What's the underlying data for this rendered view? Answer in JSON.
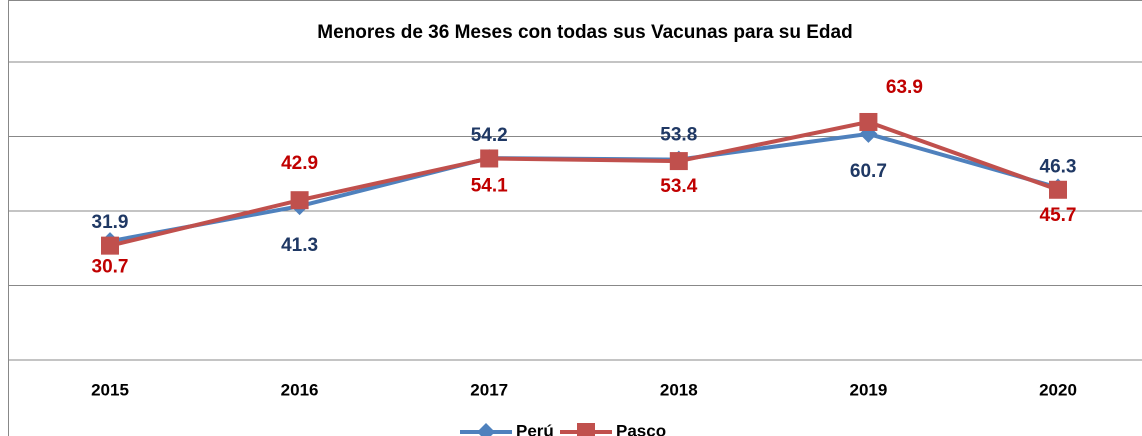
{
  "chart_data": {
    "type": "line",
    "title": "Menores de 36 Meses con todas sus Vacunas para su Edad",
    "categories": [
      "2015",
      "2016",
      "2017",
      "2018",
      "2019",
      "2020"
    ],
    "series": [
      {
        "name": "Perú",
        "color": "#4f81bd",
        "label_color": "#1f3864",
        "values": [
          31.9,
          41.3,
          54.2,
          53.8,
          60.7,
          46.3
        ]
      },
      {
        "name": "Pasco",
        "color": "#c0504d",
        "label_color": "#c00000",
        "values": [
          30.7,
          42.9,
          54.1,
          53.4,
          63.9,
          45.7
        ]
      }
    ],
    "ylim": [
      0,
      80
    ],
    "yticks": [
      0,
      20,
      40,
      60,
      80
    ],
    "grid": true,
    "legend": "bottom"
  }
}
